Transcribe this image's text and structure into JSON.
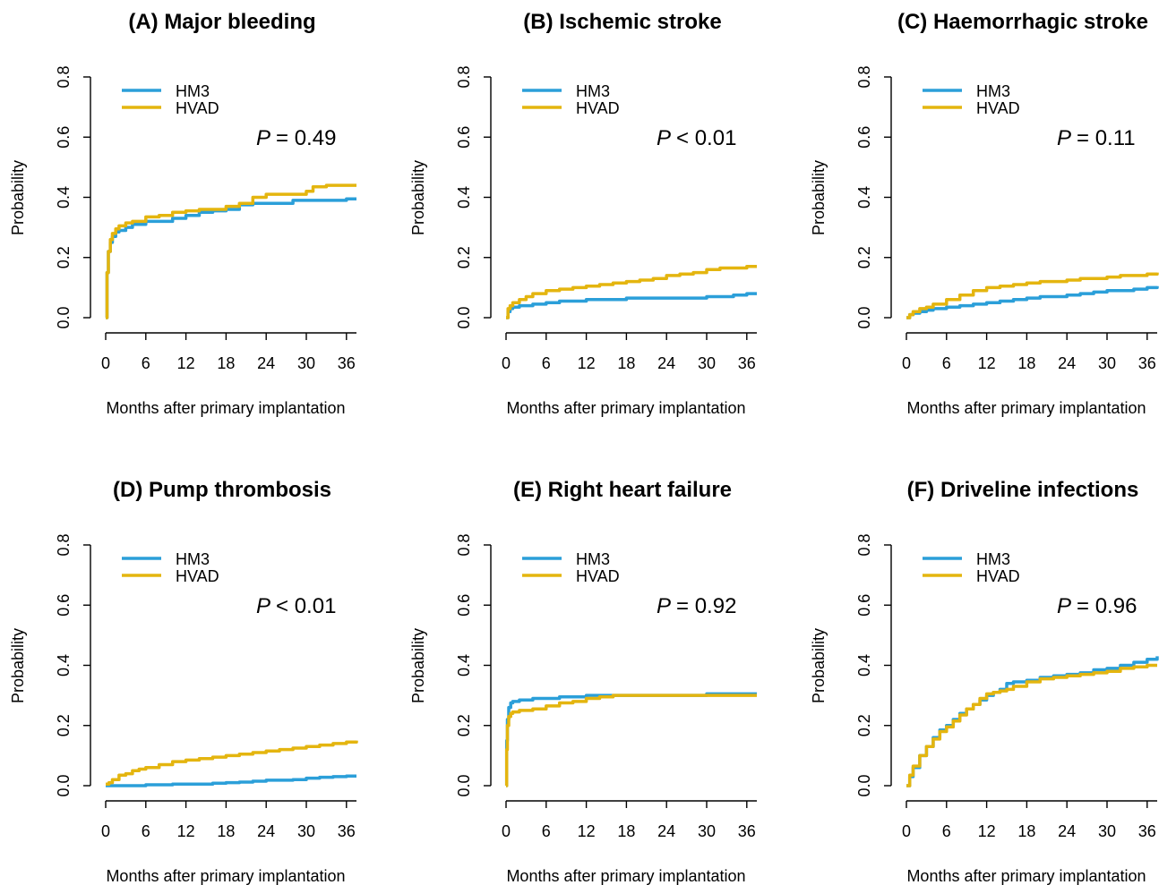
{
  "colors": {
    "HM3": "#2b9fd9",
    "HVAD": "#e4b50f"
  },
  "chart_data": [
    {
      "type": "line",
      "title": "(A) Major bleeding",
      "xlabel": "Months after primary implantation",
      "ylabel": "Probability",
      "xticks": [
        "0",
        "6",
        "12",
        "18",
        "24",
        "30",
        "36"
      ],
      "yticks": [
        "0.0",
        "0.2",
        "0.4",
        "0.6",
        "0.8"
      ],
      "xlim": [
        0,
        37.5
      ],
      "ylim": [
        0,
        0.8
      ],
      "p_label": "P",
      "p_rest": "= 0.49",
      "series": [
        {
          "name": "HM3",
          "x": [
            0,
            0.2,
            0.4,
            0.7,
            1,
            1.5,
            2,
            3,
            4,
            6,
            8,
            10,
            12,
            14,
            16,
            18,
            20,
            22,
            24,
            26,
            28,
            30,
            32,
            34,
            36,
            37.5
          ],
          "y": [
            0,
            0.15,
            0.22,
            0.25,
            0.27,
            0.285,
            0.29,
            0.3,
            0.31,
            0.32,
            0.32,
            0.33,
            0.34,
            0.35,
            0.355,
            0.36,
            0.375,
            0.38,
            0.38,
            0.38,
            0.39,
            0.39,
            0.39,
            0.39,
            0.395,
            0.395
          ]
        },
        {
          "name": "HVAD",
          "x": [
            0,
            0.2,
            0.4,
            0.7,
            1,
            1.5,
            2,
            3,
            4,
            6,
            8,
            10,
            12,
            14,
            16,
            18,
            20,
            22,
            24,
            26,
            28,
            30,
            31,
            33,
            36,
            37.5
          ],
          "y": [
            0,
            0.15,
            0.22,
            0.26,
            0.28,
            0.295,
            0.305,
            0.315,
            0.32,
            0.335,
            0.34,
            0.35,
            0.355,
            0.36,
            0.36,
            0.37,
            0.38,
            0.4,
            0.41,
            0.41,
            0.41,
            0.42,
            0.435,
            0.44,
            0.44,
            0.44
          ]
        }
      ]
    },
    {
      "type": "line",
      "title": "(B) Ischemic stroke",
      "xlabel": "Months after primary implantation",
      "ylabel": "Probability",
      "xticks": [
        "0",
        "6",
        "12",
        "18",
        "24",
        "30",
        "36"
      ],
      "yticks": [
        "0.0",
        "0.2",
        "0.4",
        "0.6",
        "0.8"
      ],
      "xlim": [
        0,
        37.5
      ],
      "ylim": [
        0,
        0.8
      ],
      "p_label": "P",
      "p_rest": "< 0.01",
      "series": [
        {
          "name": "HM3",
          "x": [
            0,
            0.3,
            0.6,
            1,
            2,
            3,
            4,
            6,
            8,
            10,
            12,
            14,
            16,
            18,
            20,
            24,
            28,
            30,
            32,
            34,
            36,
            37.5
          ],
          "y": [
            0,
            0.02,
            0.03,
            0.035,
            0.04,
            0.04,
            0.045,
            0.05,
            0.055,
            0.055,
            0.06,
            0.06,
            0.06,
            0.065,
            0.065,
            0.065,
            0.065,
            0.07,
            0.07,
            0.075,
            0.08,
            0.08
          ]
        },
        {
          "name": "HVAD",
          "x": [
            0,
            0.3,
            0.6,
            1,
            2,
            3,
            4,
            6,
            8,
            10,
            12,
            14,
            16,
            18,
            20,
            22,
            24,
            26,
            28,
            30,
            32,
            34,
            36,
            37.5
          ],
          "y": [
            0,
            0.03,
            0.04,
            0.05,
            0.06,
            0.07,
            0.08,
            0.09,
            0.095,
            0.1,
            0.105,
            0.11,
            0.115,
            0.12,
            0.125,
            0.13,
            0.14,
            0.145,
            0.15,
            0.16,
            0.165,
            0.165,
            0.17,
            0.17
          ]
        }
      ]
    },
    {
      "type": "line",
      "title": "(C) Haemorrhagic stroke",
      "xlabel": "Months after primary implantation",
      "ylabel": "Probability",
      "xticks": [
        "0",
        "6",
        "12",
        "18",
        "24",
        "30",
        "36"
      ],
      "yticks": [
        "0.0",
        "0.2",
        "0.4",
        "0.6",
        "0.8"
      ],
      "xlim": [
        0,
        37.5
      ],
      "ylim": [
        0,
        0.8
      ],
      "p_label": "P",
      "p_rest": "= 0.11",
      "series": [
        {
          "name": "HM3",
          "x": [
            0,
            0.5,
            1,
            2,
            3,
            4,
            6,
            8,
            10,
            12,
            14,
            16,
            18,
            20,
            22,
            24,
            26,
            28,
            30,
            32,
            34,
            36,
            37.5
          ],
          "y": [
            0,
            0.01,
            0.015,
            0.02,
            0.025,
            0.03,
            0.035,
            0.04,
            0.045,
            0.05,
            0.055,
            0.06,
            0.065,
            0.07,
            0.07,
            0.075,
            0.08,
            0.085,
            0.09,
            0.09,
            0.095,
            0.1,
            0.105
          ]
        },
        {
          "name": "HVAD",
          "x": [
            0,
            0.5,
            1,
            2,
            3,
            4,
            6,
            8,
            10,
            12,
            14,
            16,
            18,
            20,
            22,
            24,
            26,
            28,
            30,
            32,
            34,
            36,
            37.5
          ],
          "y": [
            0,
            0.01,
            0.02,
            0.03,
            0.035,
            0.045,
            0.06,
            0.075,
            0.09,
            0.1,
            0.105,
            0.11,
            0.115,
            0.12,
            0.12,
            0.125,
            0.13,
            0.13,
            0.135,
            0.14,
            0.14,
            0.145,
            0.15
          ]
        }
      ]
    },
    {
      "type": "line",
      "title": "(D) Pump thrombosis",
      "xlabel": "Months after primary implantation",
      "ylabel": "Probability",
      "xticks": [
        "0",
        "6",
        "12",
        "18",
        "24",
        "30",
        "36"
      ],
      "yticks": [
        "0.0",
        "0.2",
        "0.4",
        "0.6",
        "0.8"
      ],
      "xlim": [
        0,
        37.5
      ],
      "ylim": [
        0,
        0.8
      ],
      "p_label": "P",
      "p_rest": "< 0.01",
      "series": [
        {
          "name": "HM3",
          "x": [
            0,
            6,
            10,
            14,
            16,
            18,
            20,
            22,
            24,
            26,
            28,
            30,
            32,
            34,
            36,
            37.5
          ],
          "y": [
            0,
            0.003,
            0.005,
            0.005,
            0.008,
            0.01,
            0.012,
            0.015,
            0.018,
            0.018,
            0.02,
            0.025,
            0.028,
            0.03,
            0.032,
            0.032
          ]
        },
        {
          "name": "HVAD",
          "x": [
            0,
            0.5,
            1,
            2,
            3,
            4,
            5,
            6,
            8,
            10,
            12,
            14,
            16,
            18,
            20,
            22,
            24,
            26,
            28,
            30,
            32,
            34,
            36,
            37.5
          ],
          "y": [
            0.005,
            0.01,
            0.02,
            0.035,
            0.04,
            0.05,
            0.055,
            0.06,
            0.07,
            0.08,
            0.085,
            0.09,
            0.095,
            0.1,
            0.105,
            0.11,
            0.115,
            0.12,
            0.125,
            0.13,
            0.135,
            0.14,
            0.145,
            0.15
          ]
        }
      ]
    },
    {
      "type": "line",
      "title": "(E) Right heart failure",
      "xlabel": "Months after primary implantation",
      "ylabel": "Probability",
      "xticks": [
        "0",
        "6",
        "12",
        "18",
        "24",
        "30",
        "36"
      ],
      "yticks": [
        "0.0",
        "0.2",
        "0.4",
        "0.6",
        "0.8"
      ],
      "xlim": [
        0,
        37.5
      ],
      "ylim": [
        0,
        0.8
      ],
      "p_label": "P",
      "p_rest": "= 0.92",
      "series": [
        {
          "name": "HM3",
          "x": [
            0,
            0.1,
            0.2,
            0.4,
            0.7,
            1,
            2,
            4,
            6,
            8,
            10,
            12,
            14,
            16,
            18,
            20,
            24,
            28,
            30,
            32,
            36,
            37.5
          ],
          "y": [
            0,
            0.15,
            0.22,
            0.26,
            0.275,
            0.28,
            0.285,
            0.29,
            0.29,
            0.295,
            0.295,
            0.3,
            0.3,
            0.3,
            0.3,
            0.3,
            0.3,
            0.3,
            0.305,
            0.305,
            0.305,
            0.305
          ]
        },
        {
          "name": "HVAD",
          "x": [
            0,
            0.1,
            0.2,
            0.4,
            0.7,
            1,
            2,
            4,
            6,
            8,
            10,
            12,
            14,
            16,
            18,
            20,
            24,
            28,
            30,
            32,
            36,
            37.5
          ],
          "y": [
            0,
            0.12,
            0.2,
            0.23,
            0.24,
            0.245,
            0.25,
            0.255,
            0.265,
            0.275,
            0.28,
            0.29,
            0.295,
            0.3,
            0.3,
            0.3,
            0.3,
            0.3,
            0.3,
            0.3,
            0.3,
            0.3
          ]
        }
      ]
    },
    {
      "type": "line",
      "title": "(F) Driveline infections",
      "xlabel": "Months after primary implantation",
      "ylabel": "Probability",
      "xticks": [
        "0",
        "6",
        "12",
        "18",
        "24",
        "30",
        "36"
      ],
      "yticks": [
        "0.0",
        "0.2",
        "0.4",
        "0.6",
        "0.8"
      ],
      "xlim": [
        0,
        37.5
      ],
      "ylim": [
        0,
        0.8
      ],
      "p_label": "P",
      "p_rest": "= 0.96",
      "series": [
        {
          "name": "HM3",
          "x": [
            0,
            0.5,
            1,
            2,
            3,
            4,
            5,
            6,
            7,
            8,
            9,
            10,
            11,
            12,
            13,
            14,
            15,
            16,
            18,
            20,
            22,
            24,
            26,
            28,
            30,
            32,
            34,
            36,
            37.5
          ],
          "y": [
            0,
            0.03,
            0.06,
            0.1,
            0.13,
            0.16,
            0.185,
            0.2,
            0.22,
            0.24,
            0.255,
            0.27,
            0.285,
            0.3,
            0.31,
            0.32,
            0.34,
            0.345,
            0.35,
            0.36,
            0.365,
            0.37,
            0.375,
            0.385,
            0.39,
            0.4,
            0.41,
            0.42,
            0.43
          ]
        },
        {
          "name": "HVAD",
          "x": [
            0,
            0.5,
            1,
            2,
            3,
            4,
            5,
            6,
            7,
            8,
            9,
            10,
            11,
            12,
            13,
            14,
            15,
            16,
            18,
            20,
            22,
            24,
            26,
            28,
            30,
            32,
            34,
            36,
            37.5
          ],
          "y": [
            0,
            0.035,
            0.065,
            0.1,
            0.13,
            0.155,
            0.18,
            0.195,
            0.215,
            0.235,
            0.255,
            0.27,
            0.29,
            0.305,
            0.31,
            0.315,
            0.32,
            0.33,
            0.345,
            0.355,
            0.36,
            0.365,
            0.37,
            0.375,
            0.38,
            0.39,
            0.395,
            0.4,
            0.4
          ]
        }
      ]
    }
  ]
}
